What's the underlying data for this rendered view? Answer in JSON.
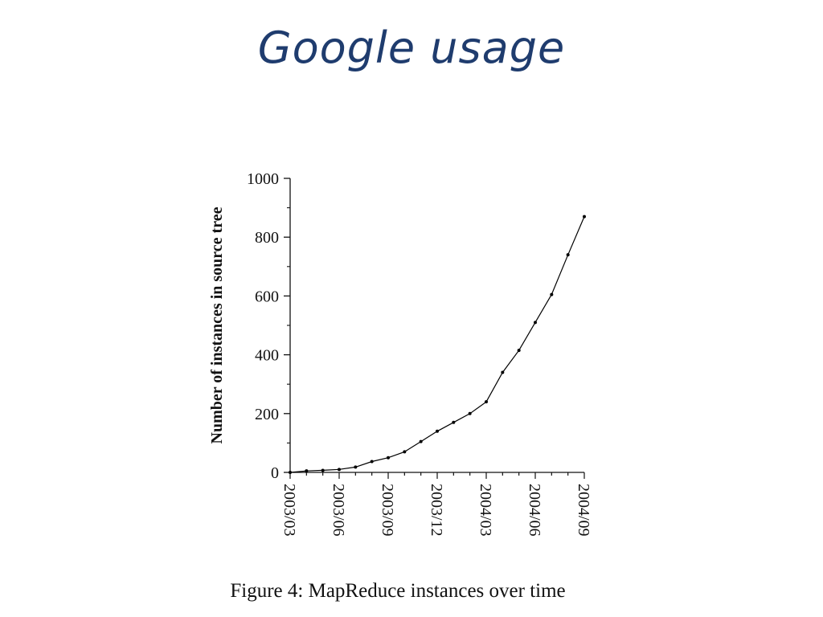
{
  "slide": {
    "title": "Google usage",
    "caption": "Figure 4: MapReduce instances over time"
  },
  "chart_data": {
    "type": "line",
    "title": "",
    "xlabel": "",
    "ylabel": "Number of instances in source tree",
    "ylim": [
      0,
      1000
    ],
    "yticks": [
      0,
      200,
      400,
      600,
      800,
      1000
    ],
    "xticks": [
      "2003/03",
      "2003/06",
      "2003/09",
      "2003/12",
      "2004/03",
      "2004/06",
      "2004/09"
    ],
    "x": [
      "2003/03",
      "2003/04",
      "2003/05",
      "2003/06",
      "2003/07",
      "2003/08",
      "2003/09",
      "2003/10",
      "2003/11",
      "2003/12",
      "2004/01",
      "2004/02",
      "2004/03",
      "2004/04",
      "2004/05",
      "2004/06",
      "2004/07",
      "2004/08",
      "2004/09"
    ],
    "series": [
      {
        "values": [
          0,
          5,
          7,
          10,
          18,
          37,
          50,
          70,
          105,
          140,
          170,
          200,
          240,
          340,
          415,
          510,
          605,
          740,
          870
        ]
      }
    ],
    "grid": false,
    "line_color": "#000000"
  }
}
